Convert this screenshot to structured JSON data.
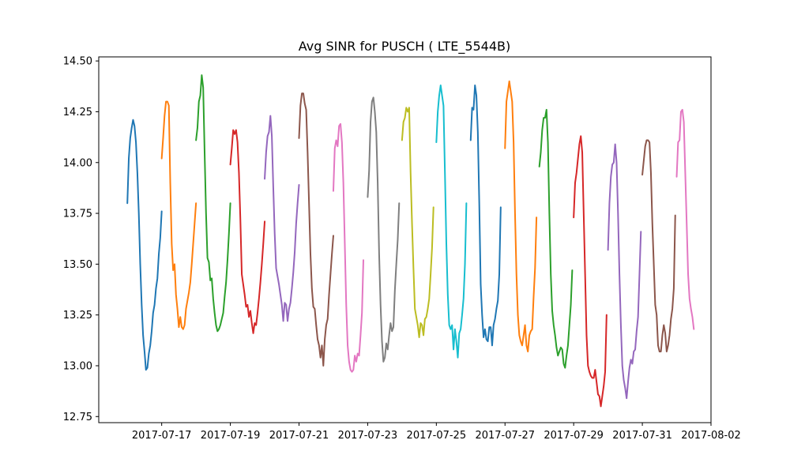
{
  "chart_data": {
    "type": "line",
    "title": "Avg SINR for PUSCH ( LTE_5544B)",
    "xlabel": "",
    "ylabel": "",
    "x_axis": {
      "scale": "date",
      "range": [
        "2017-07-15T04:00",
        "2017-08-02T00:00"
      ],
      "tick_values": [
        "2017-07-17",
        "2017-07-19",
        "2017-07-21",
        "2017-07-23",
        "2017-07-25",
        "2017-07-27",
        "2017-07-29",
        "2017-07-31",
        "2017-08-02"
      ],
      "tick_labels": [
        "2017-07-17",
        "2017-07-19",
        "2017-07-21",
        "2017-07-23",
        "2017-07-25",
        "2017-07-27",
        "2017-07-29",
        "2017-07-31",
        "2017-08-02"
      ]
    },
    "y_axis": {
      "range": [
        12.72,
        14.52
      ],
      "tick_values": [
        12.75,
        13.0,
        13.25,
        13.5,
        13.75,
        14.0,
        14.25,
        14.5
      ],
      "tick_labels": [
        "12.75",
        "13.00",
        "13.25",
        "13.50",
        "13.75",
        "14.00",
        "14.25",
        "14.50"
      ]
    },
    "grid": false,
    "legend": "none",
    "colors": [
      "#1f77b4",
      "#ff7f0e",
      "#2ca02c",
      "#d62728",
      "#9467bd",
      "#8c564b",
      "#e377c2",
      "#7f7f7f",
      "#bcbd22",
      "#17becf"
    ],
    "series": [
      {
        "start": "2017-07-16T00:00",
        "values": [
          13.8,
          14.02,
          14.12,
          14.17,
          14.21,
          14.18,
          14.1,
          13.95,
          13.75,
          13.5,
          13.3,
          13.15,
          13.07,
          12.98,
          12.99,
          13.06,
          13.1,
          13.17,
          13.26,
          13.3,
          13.38,
          13.43,
          13.55,
          13.63,
          13.76
        ]
      },
      {
        "start": "2017-07-17T00:00",
        "values": [
          14.02,
          14.12,
          14.23,
          14.3,
          14.3,
          14.28,
          13.9,
          13.6,
          13.47,
          13.5,
          13.35,
          13.28,
          13.19,
          13.24,
          13.19,
          13.18,
          13.2,
          13.28,
          13.32,
          13.36,
          13.41,
          13.5,
          13.6,
          13.7,
          13.8
        ]
      },
      {
        "start": "2017-07-18T00:00",
        "values": [
          14.11,
          14.17,
          14.3,
          14.33,
          14.43,
          14.37,
          14.05,
          13.75,
          13.53,
          13.51,
          13.42,
          13.43,
          13.33,
          13.26,
          13.2,
          13.17,
          13.18,
          13.2,
          13.23,
          13.26,
          13.34,
          13.41,
          13.52,
          13.65,
          13.8
        ]
      },
      {
        "start": "2017-07-19T00:00",
        "values": [
          13.99,
          14.07,
          14.16,
          14.14,
          14.16,
          14.1,
          13.95,
          13.72,
          13.45,
          13.4,
          13.35,
          13.29,
          13.3,
          13.24,
          13.27,
          13.21,
          13.16,
          13.21,
          13.2,
          13.26,
          13.33,
          13.41,
          13.5,
          13.6,
          13.71
        ]
      },
      {
        "start": "2017-07-20T00:00",
        "values": [
          13.92,
          14.05,
          14.13,
          14.15,
          14.23,
          14.13,
          13.88,
          13.65,
          13.48,
          13.44,
          13.4,
          13.35,
          13.3,
          13.22,
          13.31,
          13.3,
          13.22,
          13.28,
          13.31,
          13.38,
          13.46,
          13.56,
          13.7,
          13.8,
          13.89
        ]
      },
      {
        "start": "2017-07-21T00:00",
        "values": [
          14.12,
          14.28,
          14.34,
          14.34,
          14.29,
          14.26,
          14.05,
          13.8,
          13.55,
          13.38,
          13.29,
          13.28,
          13.2,
          13.13,
          13.1,
          13.04,
          13.1,
          13.0,
          13.13,
          13.2,
          13.23,
          13.35,
          13.45,
          13.55,
          13.64
        ]
      },
      {
        "start": "2017-07-22T00:00",
        "values": [
          13.86,
          14.07,
          14.11,
          14.08,
          14.18,
          14.19,
          14.1,
          13.9,
          13.6,
          13.3,
          13.1,
          13.02,
          12.98,
          12.97,
          12.98,
          13.05,
          13.02,
          13.06,
          13.05,
          13.15,
          13.26,
          13.52
        ]
      },
      {
        "start": "2017-07-23T00:00",
        "values": [
          13.83,
          13.96,
          14.2,
          14.3,
          14.32,
          14.25,
          14.15,
          13.9,
          13.55,
          13.3,
          13.12,
          13.02,
          13.04,
          13.11,
          13.08,
          13.15,
          13.21,
          13.17,
          13.19,
          13.37,
          13.5,
          13.62,
          13.8
        ]
      },
      {
        "start": "2017-07-24T00:00",
        "values": [
          14.11,
          14.2,
          14.22,
          14.27,
          14.25,
          14.27,
          13.95,
          13.7,
          13.48,
          13.28,
          13.24,
          13.2,
          13.14,
          13.21,
          13.2,
          13.15,
          13.23,
          13.24,
          13.28,
          13.33,
          13.45,
          13.58,
          13.78
        ]
      },
      {
        "start": "2017-07-25T00:00",
        "values": [
          14.1,
          14.25,
          14.33,
          14.38,
          14.33,
          14.28,
          13.95,
          13.6,
          13.35,
          13.2,
          13.18,
          13.2,
          13.08,
          13.18,
          13.12,
          13.04,
          13.16,
          13.18,
          13.25,
          13.33,
          13.5,
          13.8
        ]
      },
      {
        "start": "2017-07-26T00:00",
        "values": [
          14.11,
          14.27,
          14.26,
          14.38,
          14.33,
          14.15,
          13.8,
          13.4,
          13.25,
          13.14,
          13.18,
          13.13,
          13.12,
          13.19,
          13.19,
          13.1,
          13.2,
          13.23,
          13.28,
          13.32,
          13.45,
          13.78
        ]
      },
      {
        "start": "2017-07-27T00:00",
        "values": [
          14.07,
          14.3,
          14.35,
          14.4,
          14.35,
          14.3,
          14.1,
          13.75,
          13.45,
          13.25,
          13.15,
          13.12,
          13.1,
          13.15,
          13.2,
          13.1,
          13.07,
          13.15,
          13.17,
          13.18,
          13.34,
          13.48,
          13.73
        ]
      },
      {
        "start": "2017-07-28T00:00",
        "values": [
          13.98,
          14.05,
          14.16,
          14.22,
          14.22,
          14.26,
          14.1,
          13.75,
          13.45,
          13.27,
          13.2,
          13.15,
          13.09,
          13.05,
          13.07,
          13.09,
          13.08,
          13.01,
          12.99,
          13.05,
          13.1,
          13.2,
          13.3,
          13.47
        ]
      },
      {
        "start": "2017-07-29T00:00",
        "values": [
          13.73,
          13.9,
          13.95,
          14.02,
          14.09,
          14.13,
          14.05,
          13.75,
          13.45,
          13.15,
          13.0,
          12.97,
          12.95,
          12.94,
          12.94,
          12.98,
          12.92,
          12.86,
          12.85,
          12.8,
          12.85,
          12.9,
          12.97,
          13.25
        ]
      },
      {
        "start": "2017-07-30T00:00",
        "values": [
          13.57,
          13.8,
          13.93,
          13.99,
          14.0,
          14.09,
          14.0,
          13.75,
          13.45,
          13.2,
          13.0,
          12.93,
          12.89,
          12.84,
          12.92,
          12.99,
          13.03,
          13.01,
          13.07,
          13.08,
          13.17,
          13.24,
          13.45,
          13.66
        ]
      },
      {
        "start": "2017-07-31T00:00",
        "values": [
          13.94,
          14.01,
          14.08,
          14.11,
          14.11,
          14.1,
          13.95,
          13.7,
          13.5,
          13.3,
          13.25,
          13.1,
          13.07,
          13.07,
          13.15,
          13.2,
          13.16,
          13.07,
          13.1,
          13.15,
          13.23,
          13.28,
          13.38,
          13.74
        ]
      },
      {
        "start": "2017-08-01T00:00",
        "values": [
          13.93,
          14.1,
          14.11,
          14.25,
          14.26,
          14.2,
          13.95,
          13.7,
          13.45,
          13.33,
          13.28,
          13.24,
          13.18
        ]
      }
    ]
  }
}
